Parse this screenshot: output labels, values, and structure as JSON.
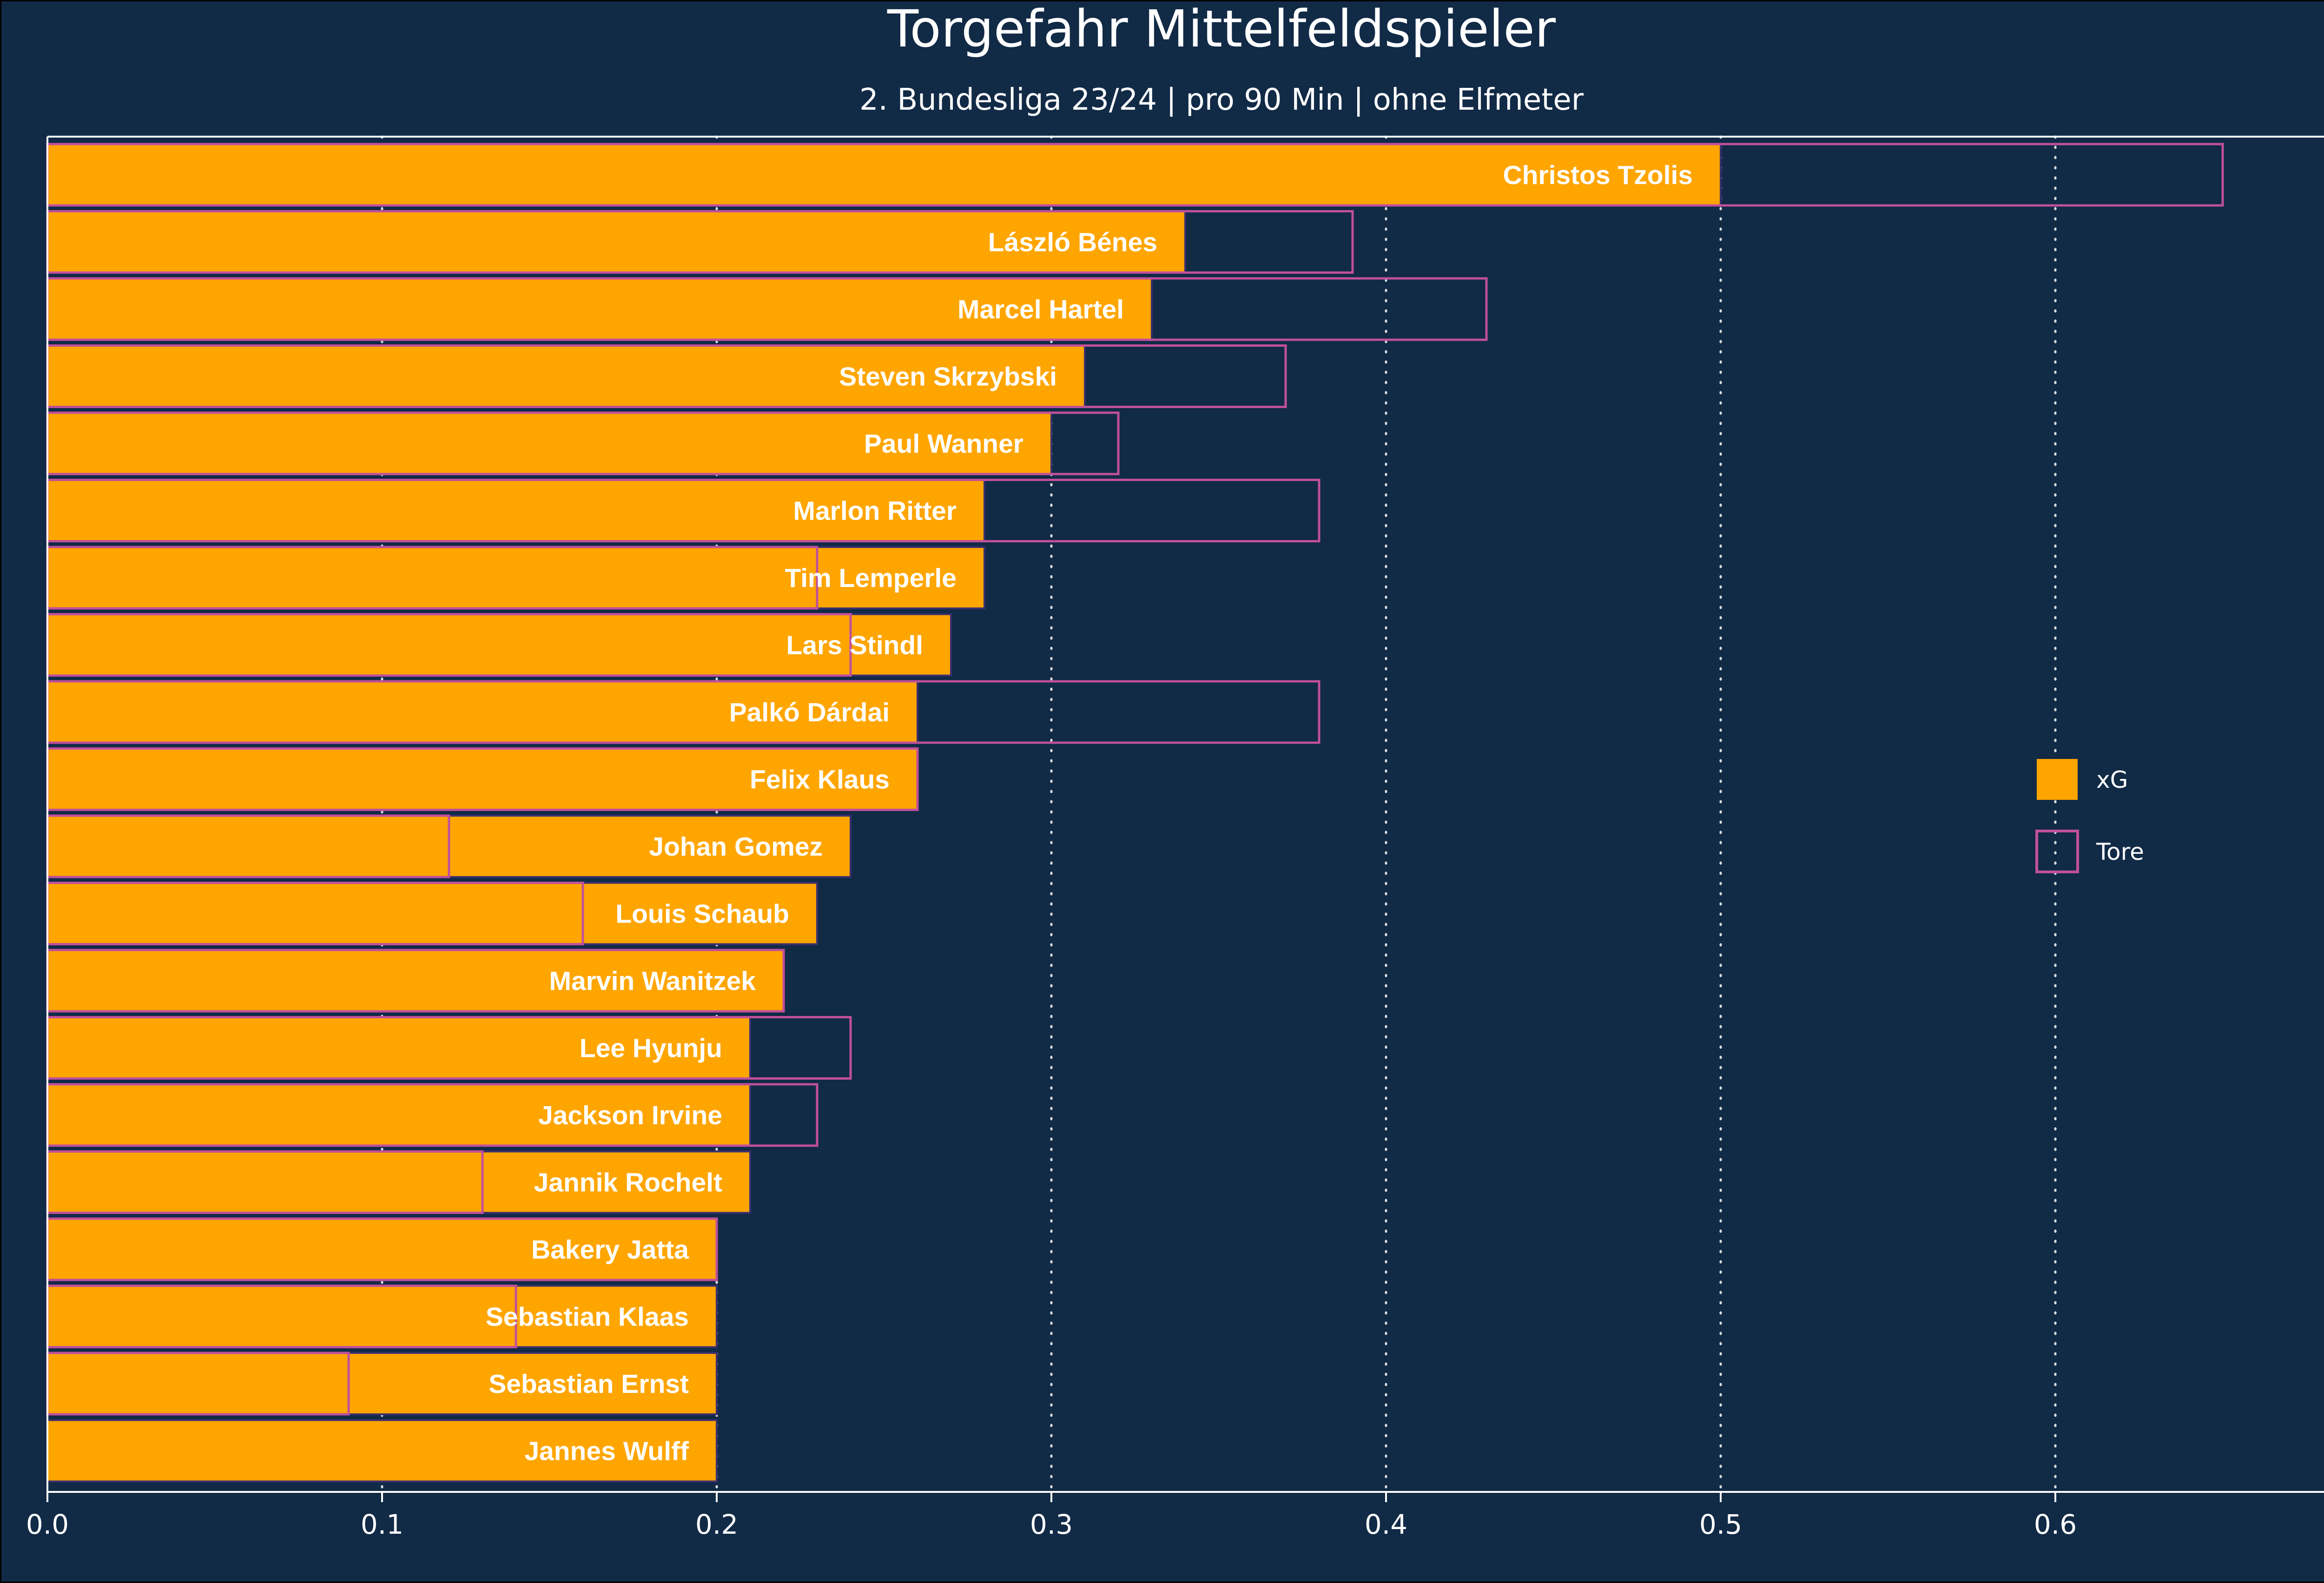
{
  "chart_data": {
    "type": "bar",
    "orientation": "horizontal",
    "title": "Torgefahr Mittelfeldspieler",
    "subtitle": "2. Bundesliga 23/24 | pro 90 Min | ohne Elfmeter",
    "xlabel": "",
    "ylabel": "",
    "xlim": [
      0,
      0.7
    ],
    "xticks": [
      "0.0",
      "0.1",
      "0.2",
      "0.3",
      "0.4",
      "0.5",
      "0.6"
    ],
    "grid": "vertical dotted",
    "legend_position": "right",
    "categories": [
      "Christos Tzolis",
      "László Bénes",
      "Marcel Hartel",
      "Steven Skrzybski",
      "Paul Wanner",
      "Marlon Ritter",
      "Tim Lemperle",
      "Lars Stindl",
      "Palkó Dárdai",
      "Felix Klaus",
      "Johan Gomez",
      "Louis Schaub",
      "Marvin Wanitzek",
      "Lee Hyunju",
      "Jackson Irvine",
      "Jannik Rochelt",
      "Bakery Jatta",
      "Sebastian Klaas",
      "Sebastian Ernst",
      "Jannes Wulff"
    ],
    "series": [
      {
        "name": "xG",
        "color": "#ffa500",
        "style": "filled",
        "values": [
          0.5,
          0.34,
          0.33,
          0.31,
          0.3,
          0.28,
          0.28,
          0.27,
          0.26,
          0.26,
          0.24,
          0.23,
          0.22,
          0.21,
          0.21,
          0.21,
          0.2,
          0.2,
          0.2,
          0.2
        ]
      },
      {
        "name": "Tore",
        "color": "#c0509a",
        "style": "outline",
        "values": [
          0.65,
          0.39,
          0.43,
          0.37,
          0.32,
          0.38,
          0.23,
          0.24,
          0.38,
          0.26,
          0.12,
          0.16,
          0.22,
          0.24,
          0.23,
          0.13,
          0.2,
          0.14,
          0.09,
          0.0
        ]
      }
    ]
  }
}
